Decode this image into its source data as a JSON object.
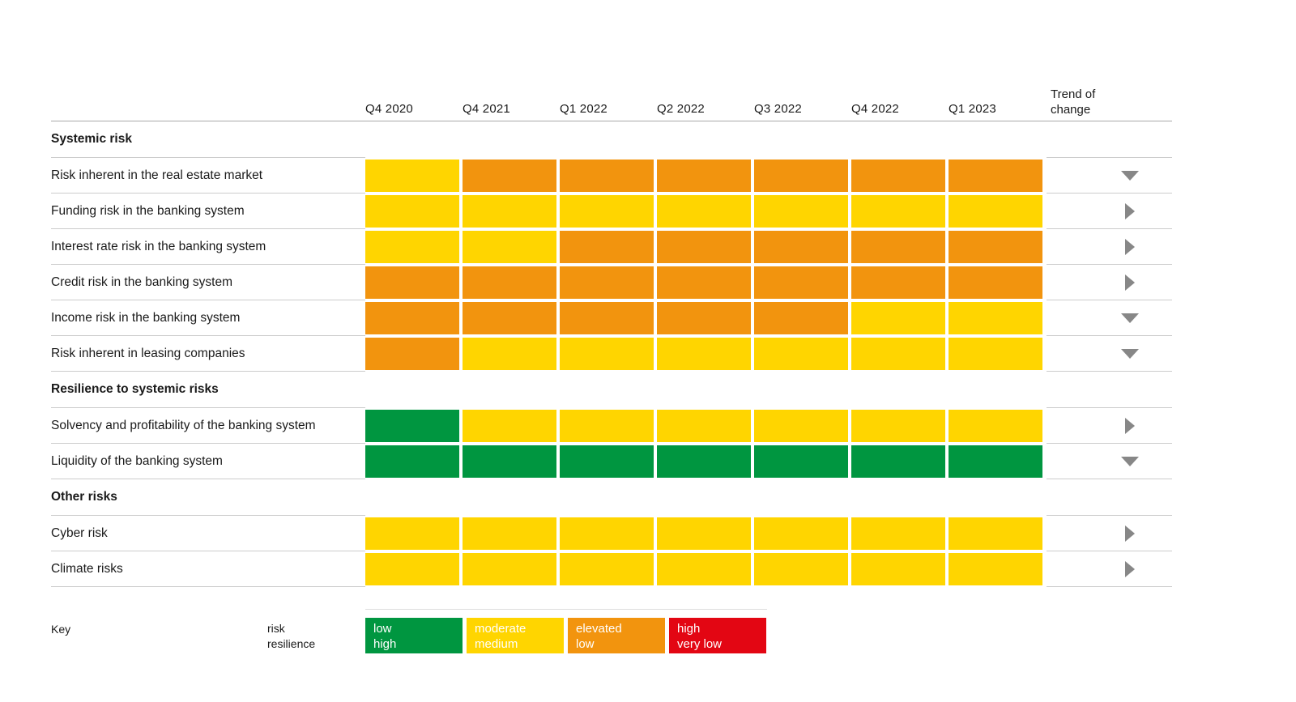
{
  "colors": {
    "text": "#1a1a1a",
    "row_separator": "#cccccc",
    "header_separator": "#a8a8a8",
    "trend_arrow": "#878787",
    "key_top_line": "#dddddd"
  },
  "chart_data": {
    "type": "heatmap",
    "columns": [
      "Q4 2020",
      "Q4 2021",
      "Q1 2022",
      "Q2 2022",
      "Q3 2022",
      "Q4 2022",
      "Q1 2023"
    ],
    "trend_column_label": "Trend of change",
    "color_scale": {
      "green": "#009640",
      "yellow": "#FFD500",
      "orange": "#F2940E",
      "red": "#E30613"
    },
    "sections": [
      {
        "title": "Systemic risk",
        "rows": [
          {
            "label": "Risk inherent in the real estate market",
            "values": [
              "yellow",
              "orange",
              "orange",
              "orange",
              "orange",
              "orange",
              "orange"
            ],
            "trend": "down"
          },
          {
            "label": "Funding risk in the banking system",
            "values": [
              "yellow",
              "yellow",
              "yellow",
              "yellow",
              "yellow",
              "yellow",
              "yellow"
            ],
            "trend": "right"
          },
          {
            "label": "Interest rate risk in the banking system",
            "values": [
              "yellow",
              "yellow",
              "orange",
              "orange",
              "orange",
              "orange",
              "orange"
            ],
            "trend": "right"
          },
          {
            "label": "Credit risk in the banking system",
            "values": [
              "orange",
              "orange",
              "orange",
              "orange",
              "orange",
              "orange",
              "orange"
            ],
            "trend": "right"
          },
          {
            "label": "Income risk in the banking system",
            "values": [
              "orange",
              "orange",
              "orange",
              "orange",
              "orange",
              "yellow",
              "yellow"
            ],
            "trend": "down"
          },
          {
            "label": "Risk inherent in leasing companies",
            "values": [
              "orange",
              "yellow",
              "yellow",
              "yellow",
              "yellow",
              "yellow",
              "yellow"
            ],
            "trend": "down"
          }
        ]
      },
      {
        "title": "Resilience to systemic risks",
        "rows": [
          {
            "label": "Solvency and profitability of the banking system",
            "values": [
              "green",
              "yellow",
              "yellow",
              "yellow",
              "yellow",
              "yellow",
              "yellow"
            ],
            "trend": "right"
          },
          {
            "label": "Liquidity of the banking system",
            "values": [
              "green",
              "green",
              "green",
              "green",
              "green",
              "green",
              "green"
            ],
            "trend": "down"
          }
        ]
      },
      {
        "title": "Other risks",
        "rows": [
          {
            "label": "Cyber risk",
            "values": [
              "yellow",
              "yellow",
              "yellow",
              "yellow",
              "yellow",
              "yellow",
              "yellow"
            ],
            "trend": "right"
          },
          {
            "label": "Climate risks",
            "values": [
              "yellow",
              "yellow",
              "yellow",
              "yellow",
              "yellow",
              "yellow",
              "yellow"
            ],
            "trend": "right"
          }
        ]
      }
    ],
    "legend": {
      "label": "Key",
      "axis_labels": [
        "risk",
        "resilience"
      ],
      "items": [
        {
          "color": "green",
          "risk": "low",
          "resilience": "high"
        },
        {
          "color": "yellow",
          "risk": "moderate",
          "resilience": "medium"
        },
        {
          "color": "orange",
          "risk": "elevated",
          "resilience": "low"
        },
        {
          "color": "red",
          "risk": "high",
          "resilience": "very low"
        }
      ]
    }
  }
}
